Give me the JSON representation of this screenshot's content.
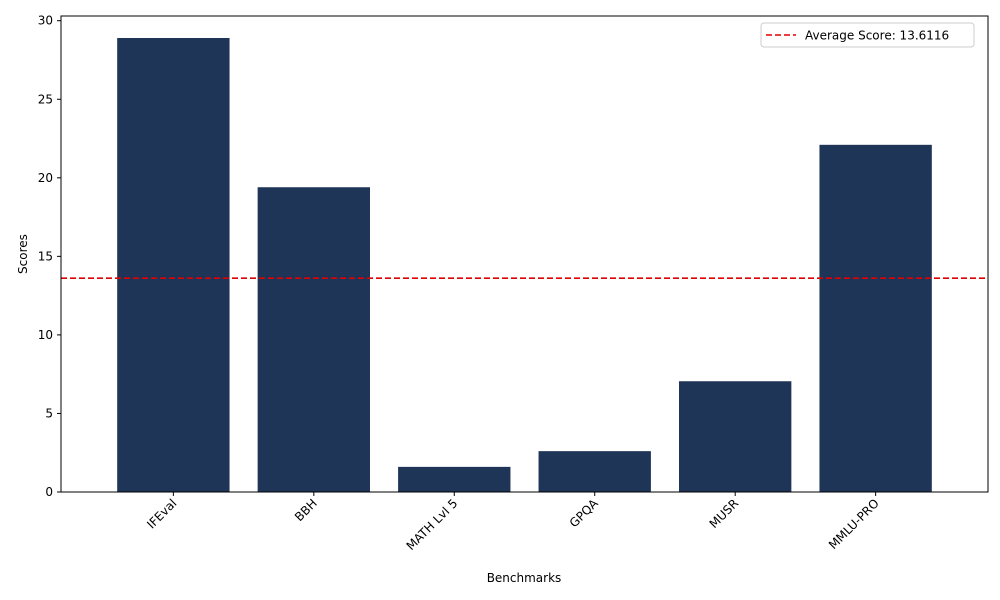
{
  "chart_data": {
    "type": "bar",
    "categories": [
      "IFEval",
      "BBH",
      "MATH Lvl 5",
      "GPQA",
      "MUSR",
      "MMLU-PRO"
    ],
    "values": [
      28.9,
      19.4,
      1.6,
      2.6,
      7.05,
      22.1
    ],
    "xlabel": "Benchmarks",
    "ylabel": "Scores",
    "ylim": [
      0,
      30.3
    ],
    "yticks": [
      0,
      5,
      10,
      15,
      20,
      25,
      30
    ],
    "bar_color": "#1f3557",
    "grid": false,
    "average_line": {
      "value": 13.6116,
      "label": "Average Score: 13.6116",
      "color": "#e00000",
      "style": "dashed"
    },
    "legend_placement": "top-right"
  }
}
